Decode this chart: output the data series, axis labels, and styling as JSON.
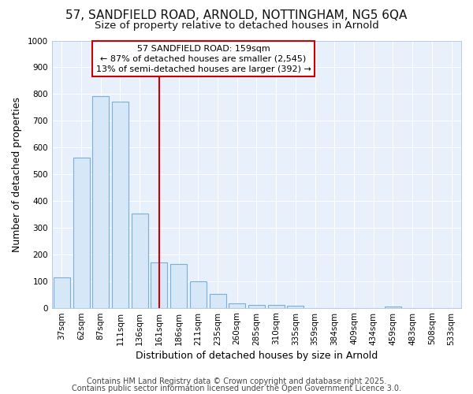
{
  "title_line1": "57, SANDFIELD ROAD, ARNOLD, NOTTINGHAM, NG5 6QA",
  "title_line2": "Size of property relative to detached houses in Arnold",
  "xlabel": "Distribution of detached houses by size in Arnold",
  "ylabel": "Number of detached properties",
  "categories": [
    "37sqm",
    "62sqm",
    "87sqm",
    "111sqm",
    "136sqm",
    "161sqm",
    "186sqm",
    "211sqm",
    "235sqm",
    "260sqm",
    "285sqm",
    "310sqm",
    "335sqm",
    "359sqm",
    "384sqm",
    "409sqm",
    "434sqm",
    "459sqm",
    "483sqm",
    "508sqm",
    "533sqm"
  ],
  "values": [
    113,
    563,
    793,
    770,
    352,
    170,
    163,
    98,
    52,
    17,
    11,
    10,
    8,
    0,
    0,
    0,
    0,
    6,
    0,
    0,
    0
  ],
  "bar_color": "#d6e8f7",
  "bar_edge_color": "#7ab0d8",
  "vline_index": 5,
  "vline_color": "#cc0000",
  "annotation_text": "57 SANDFIELD ROAD: 159sqm\n← 87% of detached houses are smaller (2,545)\n13% of semi-detached houses are larger (392) →",
  "annotation_box_facecolor": "#ffffff",
  "annotation_box_edgecolor": "#cc0000",
  "ylim": [
    0,
    1000
  ],
  "yticks": [
    0,
    100,
    200,
    300,
    400,
    500,
    600,
    700,
    800,
    900,
    1000
  ],
  "footer_line1": "Contains HM Land Registry data © Crown copyright and database right 2025.",
  "footer_line2": "Contains public sector information licensed under the Open Government Licence 3.0.",
  "bg_color": "#ffffff",
  "plot_bg_color": "#e8f0fc",
  "grid_color": "#ffffff",
  "title_fontsize": 11,
  "subtitle_fontsize": 9.5,
  "axis_label_fontsize": 9,
  "tick_fontsize": 7.5,
  "annotation_fontsize": 8,
  "footer_fontsize": 7
}
